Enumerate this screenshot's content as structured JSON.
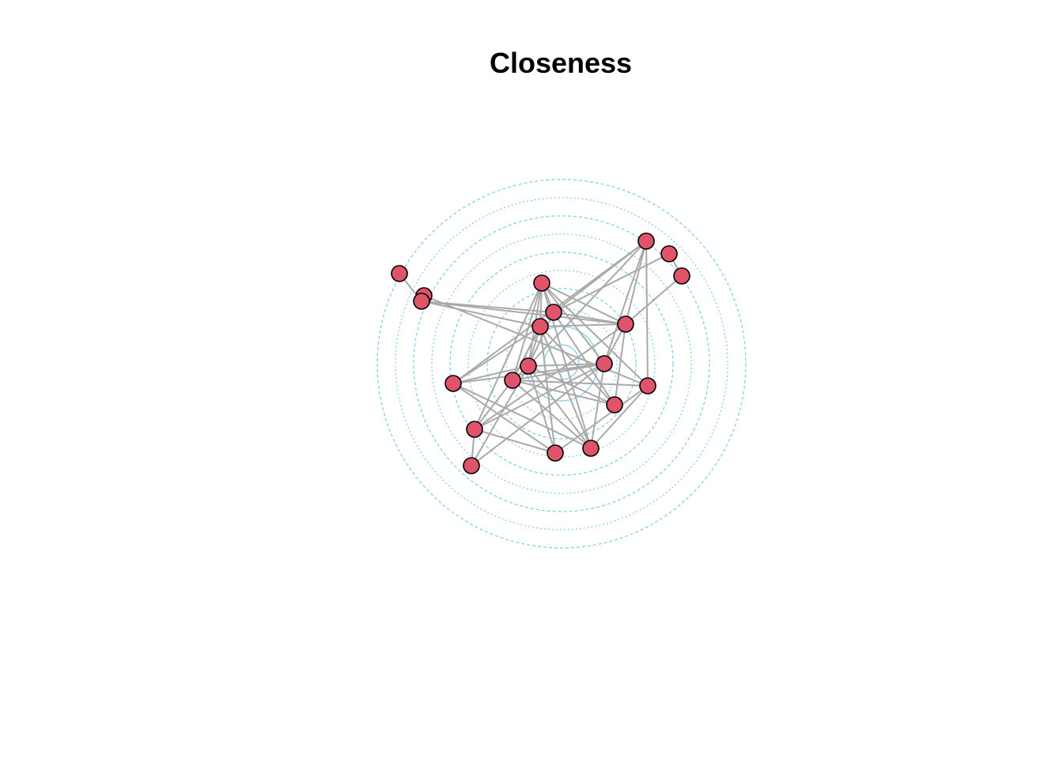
{
  "title": "Closeness",
  "colors": {
    "node_fill": "#DF536B",
    "node_stroke": "#000000",
    "edge": "#A9A9A9",
    "ring": "#87CEEB"
  },
  "nodes": [
    {
      "id": 1
    },
    {
      "id": 2
    },
    {
      "id": 3
    },
    {
      "id": 4
    },
    {
      "id": 5
    },
    {
      "id": 6
    },
    {
      "id": 7
    },
    {
      "id": 8
    },
    {
      "id": 9
    },
    {
      "id": 10
    },
    {
      "id": 11
    },
    {
      "id": 12
    },
    {
      "id": 13
    },
    {
      "id": 14
    },
    {
      "id": 15
    },
    {
      "id": 16
    },
    {
      "id": 17
    },
    {
      "id": 18
    },
    {
      "id": 19
    },
    {
      "id": 20
    }
  ],
  "edges": [
    [
      1,
      3
    ],
    [
      2,
      3
    ],
    [
      2,
      15
    ],
    [
      3,
      8
    ],
    [
      3,
      9
    ],
    [
      3,
      10
    ],
    [
      4,
      8
    ],
    [
      4,
      9
    ],
    [
      4,
      10
    ],
    [
      4,
      11
    ],
    [
      4,
      12
    ],
    [
      4,
      13
    ],
    [
      4,
      15
    ],
    [
      4,
      17
    ],
    [
      4,
      19
    ],
    [
      5,
      8
    ],
    [
      5,
      10
    ],
    [
      5,
      11
    ],
    [
      5,
      12
    ],
    [
      5,
      14
    ],
    [
      5,
      15
    ],
    [
      6,
      7
    ],
    [
      6,
      8
    ],
    [
      7,
      10
    ],
    [
      8,
      10
    ],
    [
      8,
      11
    ],
    [
      8,
      16
    ],
    [
      9,
      10
    ],
    [
      9,
      11
    ],
    [
      9,
      13
    ],
    [
      9,
      14
    ],
    [
      9,
      16
    ],
    [
      9,
      18
    ],
    [
      9,
      19
    ],
    [
      10,
      12
    ],
    [
      10,
      16
    ],
    [
      10,
      17
    ],
    [
      11,
      12
    ],
    [
      11,
      13
    ],
    [
      11,
      14
    ],
    [
      11,
      16
    ],
    [
      11,
      18
    ],
    [
      11,
      19
    ],
    [
      11,
      20
    ],
    [
      12,
      13
    ],
    [
      12,
      14
    ],
    [
      12,
      17
    ],
    [
      12,
      19
    ],
    [
      12,
      20
    ],
    [
      13,
      15
    ],
    [
      13,
      16
    ],
    [
      13,
      17
    ],
    [
      13,
      19
    ],
    [
      14,
      18
    ],
    [
      14,
      19
    ],
    [
      15,
      18
    ],
    [
      15,
      19
    ],
    [
      17,
      18
    ],
    [
      17,
      20
    ]
  ],
  "rings": {
    "count": 10,
    "center_label": ""
  }
}
